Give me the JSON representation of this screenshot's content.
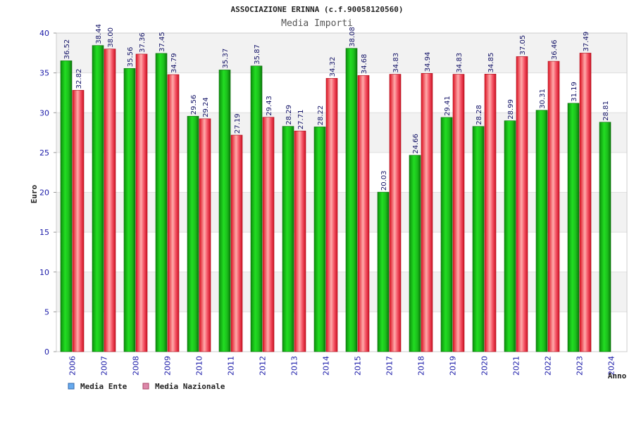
{
  "chart_data": {
    "type": "bar",
    "title": "ASSOCIAZIONE ERINNA (c.f.90058120560)",
    "subtitle": "Media Importi",
    "xlabel": "Anno",
    "ylabel": "Euro",
    "ylim": [
      0,
      40
    ],
    "yticks": [
      0,
      5,
      10,
      15,
      20,
      25,
      30,
      35,
      40
    ],
    "grid": true,
    "legend_position": "bottom-left",
    "categories": [
      "2006",
      "2007",
      "2008",
      "2009",
      "2010",
      "2011",
      "2012",
      "2013",
      "2014",
      "2015",
      "2017",
      "2018",
      "2019",
      "2020",
      "2021",
      "2022",
      "2023",
      "2024"
    ],
    "series": [
      {
        "name": "Media Ente",
        "color": "#22cc22",
        "legend_color": "#66aaee",
        "values": [
          36.52,
          38.44,
          35.56,
          37.45,
          29.56,
          35.37,
          35.87,
          28.29,
          28.22,
          38.08,
          20.03,
          24.66,
          29.41,
          28.28,
          28.99,
          30.31,
          31.19,
          28.81
        ],
        "labels": [
          "36.52",
          "38.44",
          "35.56",
          "37.45",
          "29.56",
          "35.37",
          "35.87",
          "28.29",
          "28.22",
          "38.08",
          "20.03",
          "24.66",
          "29.41",
          "28.28",
          "28.99",
          "30.31",
          "31.19",
          "28.81"
        ]
      },
      {
        "name": "Media Nazionale",
        "color": "#ee2233",
        "legend_color": "#dd88aa",
        "values": [
          32.82,
          38.0,
          37.36,
          34.79,
          29.24,
          27.19,
          29.43,
          27.71,
          34.32,
          34.68,
          34.83,
          34.94,
          34.83,
          34.85,
          37.05,
          36.46,
          37.49,
          null
        ],
        "labels": [
          "32.82",
          "38.00",
          "37.36",
          "34.79",
          "29.24",
          "27.19",
          "29.43",
          "27.71",
          "34.32",
          "34.68",
          "34.83",
          "34.94",
          "34.83",
          "34.85",
          "37.05",
          "36.46",
          "37.49",
          ""
        ]
      }
    ]
  }
}
